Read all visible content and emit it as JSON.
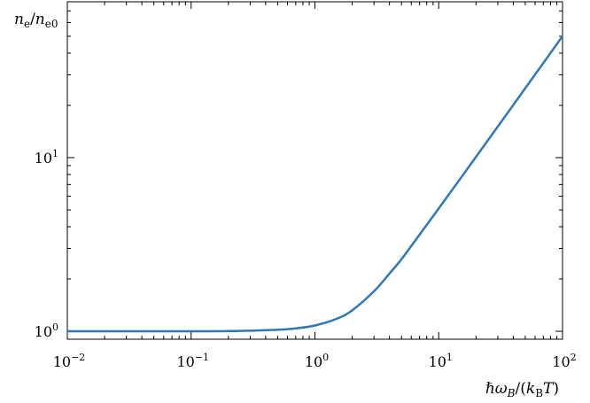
{
  "chart_data": {
    "type": "line",
    "title": "",
    "xscale": "log",
    "yscale": "log",
    "xlim": [
      0.01,
      100
    ],
    "ylim": [
      0.9,
      79
    ],
    "grid": false,
    "x_ticks": [
      {
        "value": 0.01,
        "base": "10",
        "exp": "−2"
      },
      {
        "value": 0.1,
        "base": "10",
        "exp": "−1"
      },
      {
        "value": 1,
        "base": "10",
        "exp": "0"
      },
      {
        "value": 10,
        "base": "10",
        "exp": "1"
      },
      {
        "value": 100,
        "base": "10",
        "exp": "2"
      }
    ],
    "y_ticks": [
      {
        "value": 1,
        "base": "10",
        "exp": "0"
      },
      {
        "value": 10,
        "base": "10",
        "exp": "1"
      }
    ],
    "xlabel": {
      "hbar": "ℏ",
      "omega": "ω",
      "sub": "B",
      "slash_paren": "/(",
      "k": "k",
      "ksub": "B",
      "T": "T",
      "close": ")"
    },
    "ylabel": {
      "n1": "n",
      "sub1": "e",
      "slash": "/",
      "n2": "n",
      "sub2": "e0"
    },
    "series": [
      {
        "color": "#2f77b5",
        "x": [
          0.01,
          0.02,
          0.05,
          0.1,
          0.2,
          0.3,
          0.5,
          0.7,
          1,
          1.5,
          2,
          3,
          4,
          5,
          7,
          10,
          15,
          20,
          30,
          50,
          70,
          100
        ],
        "y": [
          1.0,
          1.0,
          1.0,
          1.0,
          1.003,
          1.008,
          1.02,
          1.04,
          1.08,
          1.18,
          1.32,
          1.7,
          2.15,
          2.6,
          3.6,
          5.1,
          7.6,
          10.1,
          15.1,
          25.1,
          35.1,
          50.1
        ]
      }
    ]
  }
}
